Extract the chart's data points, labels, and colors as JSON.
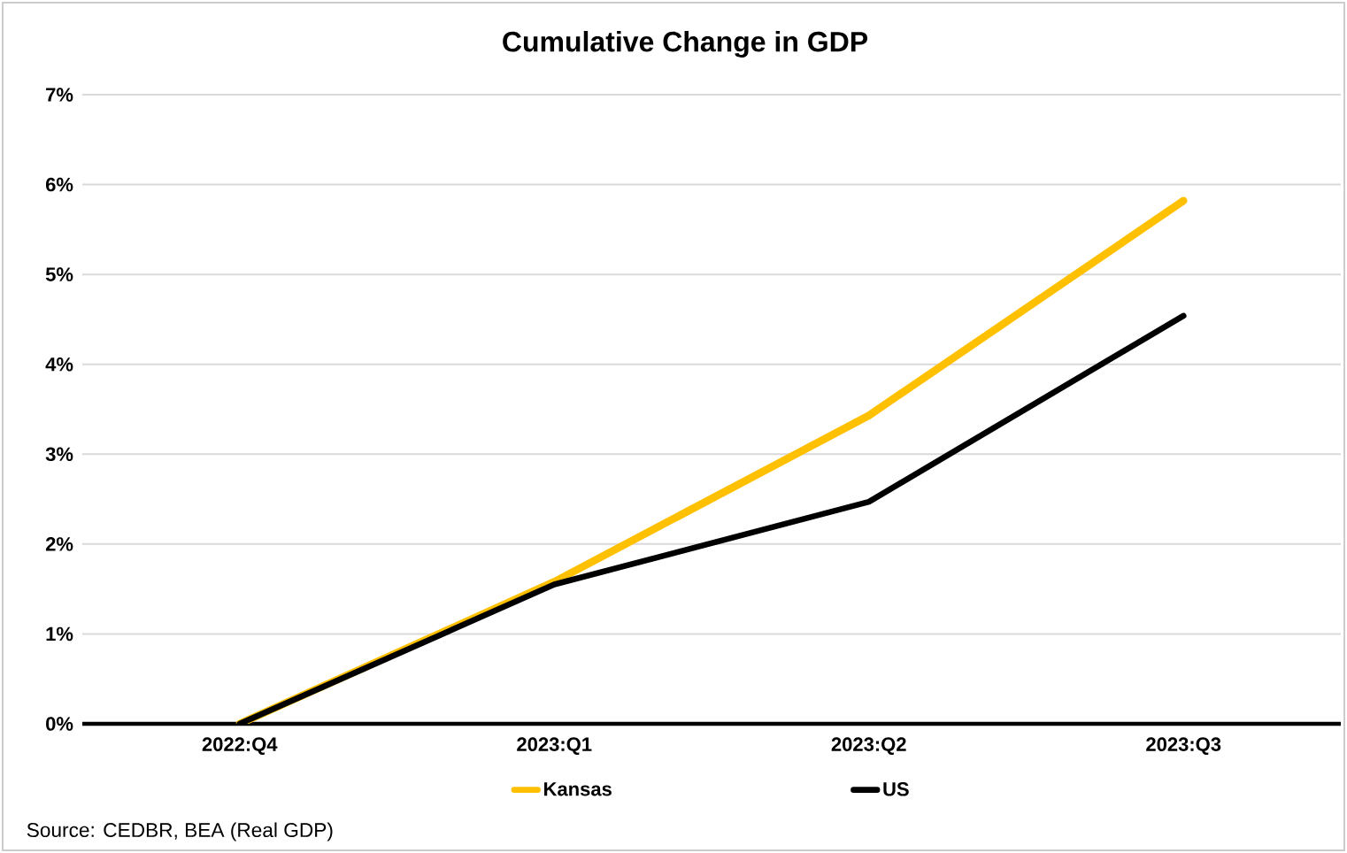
{
  "chart_data": {
    "type": "line",
    "title": "Cumulative Change in GDP",
    "categories": [
      "2022:Q4",
      "2023:Q1",
      "2023:Q2",
      "2023:Q3"
    ],
    "series": [
      {
        "name": "Kansas",
        "color": "#ffc000",
        "values": [
          0,
          1.58,
          3.43,
          5.82
        ]
      },
      {
        "name": "US",
        "color": "#000000",
        "values": [
          0,
          1.55,
          2.47,
          4.54
        ]
      }
    ],
    "ylim": [
      0,
      7
    ],
    "yticks": [
      {
        "value": 0,
        "label": "0%"
      },
      {
        "value": 1,
        "label": "1%"
      },
      {
        "value": 2,
        "label": "2%"
      },
      {
        "value": 3,
        "label": "3%"
      },
      {
        "value": 4,
        "label": "4%"
      },
      {
        "value": 5,
        "label": "5%"
      },
      {
        "value": 6,
        "label": "6%"
      },
      {
        "value": 7,
        "label": "7%"
      }
    ],
    "grid": "y",
    "legend": "bottom",
    "marker": "none",
    "line_style": "solid",
    "annotations": [
      "Source: CEDBR, BEA (Real GDP)"
    ]
  }
}
